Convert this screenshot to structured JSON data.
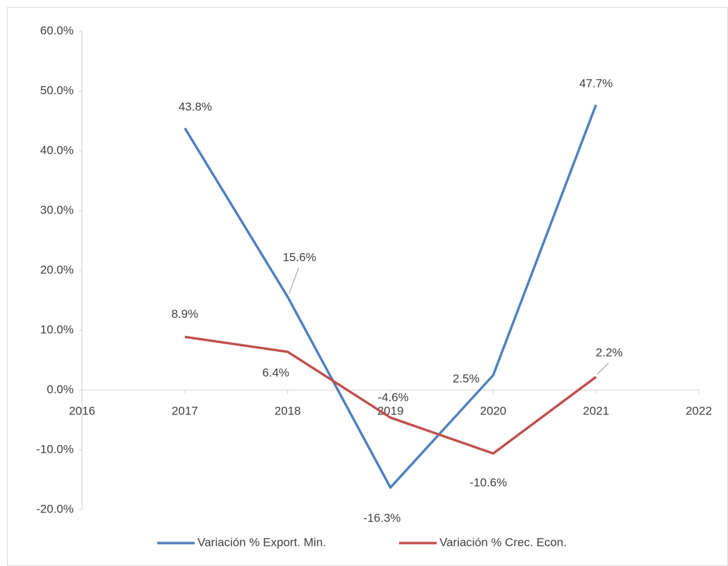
{
  "chart_data": {
    "type": "line",
    "x": [
      2017,
      2018,
      2019,
      2020,
      2021
    ],
    "series": [
      {
        "name": "Variación % Export. Min.",
        "color": "#4f81bd",
        "values": [
          43.8,
          15.6,
          -16.3,
          2.5,
          47.7
        ],
        "value_labels": [
          "43.8%",
          "15.6%",
          "-16.3%",
          "2.5%",
          "47.7%"
        ]
      },
      {
        "name": "Variación % Crec. Econ.",
        "color": "#c0504d",
        "values": [
          8.9,
          6.4,
          -4.6,
          -10.6,
          2.2
        ],
        "value_labels": [
          "8.9%",
          "6.4%",
          "-4.6%",
          "-10.6%",
          "2.2%"
        ]
      }
    ],
    "xlim": [
      2016,
      2022
    ],
    "xticks": [
      2016,
      2017,
      2018,
      2019,
      2020,
      2021,
      2022
    ],
    "ylim": [
      -20,
      60
    ],
    "yticks": [
      {
        "value": -20,
        "label": "-20.0%"
      },
      {
        "value": -10,
        "label": "-10.0%"
      },
      {
        "value": 0,
        "label": "0.0%"
      },
      {
        "value": 10,
        "label": "10.0%"
      },
      {
        "value": 20,
        "label": "20.0%"
      },
      {
        "value": 30,
        "label": "30.0%"
      },
      {
        "value": 40,
        "label": "40.0%"
      },
      {
        "value": 50,
        "label": "50.0%"
      },
      {
        "value": 60,
        "label": "60.0%"
      }
    ],
    "legend": "bottom"
  }
}
